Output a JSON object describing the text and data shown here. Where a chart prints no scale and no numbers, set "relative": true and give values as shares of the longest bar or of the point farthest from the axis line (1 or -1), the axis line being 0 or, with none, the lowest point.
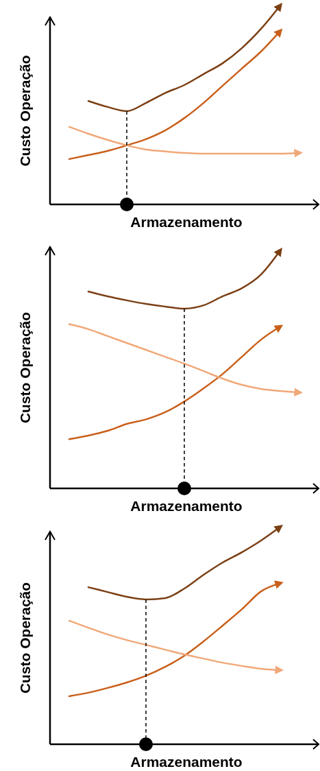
{
  "chart_data": [
    {
      "type": "line",
      "relative": true,
      "xlabel": "Armazenamento",
      "ylabel": "Custo Operação",
      "categories": [
        null,
        null,
        null,
        null,
        null,
        null,
        null,
        null,
        null,
        null,
        null,
        null,
        null
      ],
      "series": [
        {
          "color": "#7b3f14",
          "values": [
            null,
            0.52,
            0.49,
            0.469,
            0.51,
            0.56,
            0.6,
            0.655,
            0.71,
            0.786,
            0.883,
            1,
            null
          ]
        },
        {
          "color": "#c95f1a",
          "values": [
            0.228,
            0.248,
            0.269,
            0.297,
            0.328,
            0.372,
            0.434,
            0.51,
            0.597,
            0.683,
            0.769,
            0.872,
            null
          ]
        },
        {
          "color": "#f0a878",
          "values": [
            0.39,
            0.355,
            0.324,
            0.297,
            0.276,
            0.266,
            0.259,
            0.255,
            0.255,
            0.255,
            0.255,
            0.255,
            0.259
          ]
        }
      ]
    },
    {
      "type": "line",
      "relative": true,
      "xlabel": "Armazenamento",
      "ylabel": "Custo Operação",
      "categories": [
        null,
        null,
        null,
        null,
        null,
        null,
        null,
        null,
        null,
        null,
        null,
        null,
        null
      ],
      "series": [
        {
          "color": "#7b3f14",
          "values": [
            null,
            0.827,
            0.807,
            0.79,
            0.775,
            0.764,
            0.755,
            0.769,
            0.807,
            0.841,
            0.899,
            1,
            null
          ]
        },
        {
          "color": "#c95f1a",
          "values": [
            0.207,
            0.222,
            0.242,
            0.271,
            0.29,
            0.32,
            0.365,
            0.42,
            0.481,
            0.553,
            0.625,
            0.68,
            null
          ]
        },
        {
          "color": "#f0a878",
          "values": [
            0.69,
            0.669,
            0.64,
            0.611,
            0.582,
            0.553,
            0.524,
            0.493,
            0.461,
            0.435,
            0.418,
            0.409,
            0.403
          ]
        }
      ]
    },
    {
      "type": "line",
      "relative": true,
      "xlabel": "Armazenamento",
      "ylabel": "Custo Operação",
      "categories": [
        null,
        null,
        null,
        null,
        null,
        null,
        null,
        null,
        null,
        null,
        null,
        null,
        null
      ],
      "series": [
        {
          "color": "#7b3f14",
          "values": [
            null,
            0.722,
            0.7,
            0.678,
            0.666,
            0.672,
            0.716,
            0.779,
            0.836,
            0.883,
            0.937,
            1,
            null
          ]
        },
        {
          "color": "#c95f1a",
          "values": [
            0.221,
            0.237,
            0.259,
            0.284,
            0.315,
            0.356,
            0.407,
            0.473,
            0.546,
            0.621,
            0.703,
            0.741,
            null
          ]
        },
        {
          "color": "#f0a878",
          "values": [
            0.568,
            0.536,
            0.505,
            0.479,
            0.457,
            0.435,
            0.413,
            0.394,
            0.375,
            0.36,
            0.347,
            0.341,
            null
          ]
        }
      ]
    }
  ]
}
